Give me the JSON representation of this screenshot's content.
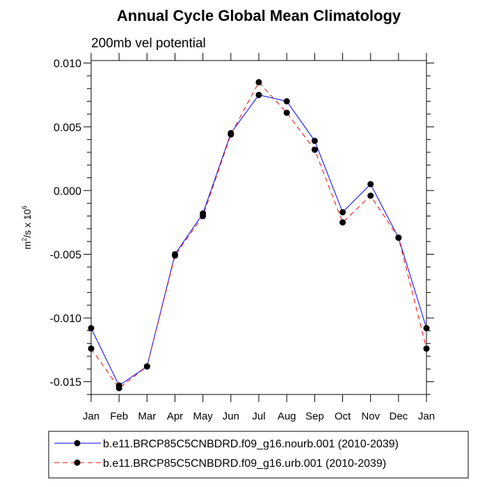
{
  "chart_data": {
    "type": "line",
    "title": "Annual Cycle Global Mean Climatology",
    "subtitle": "200mb vel potential",
    "xlabel": "",
    "ylabel_main": "m",
    "ylabel_sup1": "2",
    "ylabel_mid": "/s x 10",
    "ylabel_sup2": "6",
    "categories": [
      "Jan",
      "Feb",
      "Mar",
      "Apr",
      "May",
      "Jun",
      "Jul",
      "Aug",
      "Sep",
      "Oct",
      "Nov",
      "Dec",
      "Jan"
    ],
    "ylim": [
      -0.016,
      0.0102
    ],
    "yticks": [
      0.01,
      0.005,
      0.0,
      -0.005,
      -0.01,
      -0.015
    ],
    "ytick_labels": [
      "0.010",
      "0.005",
      "0.000",
      "-0.005",
      "-0.010",
      "-0.015"
    ],
    "series": [
      {
        "name": "b.e11.BRCP85C5CNBDRD.f09_g16.nourb.001 (2010-2039)",
        "color": "#0000ff",
        "dash": "solid",
        "values": [
          -0.0108,
          -0.0153,
          -0.0138,
          -0.005,
          -0.0018,
          0.0045,
          0.0075,
          0.007,
          0.0039,
          -0.0017,
          0.0005,
          -0.0037,
          -0.0108
        ]
      },
      {
        "name": "b.e11.BRCP85C5CNBDRD.f09_g16.urb.001 (2010-2039)",
        "color": "#ff0000",
        "dash": "dashed",
        "values": [
          -0.0124,
          -0.0155,
          -0.0138,
          -0.0051,
          -0.002,
          0.0044,
          0.0085,
          0.0061,
          0.0032,
          -0.0025,
          -0.0004,
          -0.0037,
          -0.0124
        ]
      }
    ]
  }
}
